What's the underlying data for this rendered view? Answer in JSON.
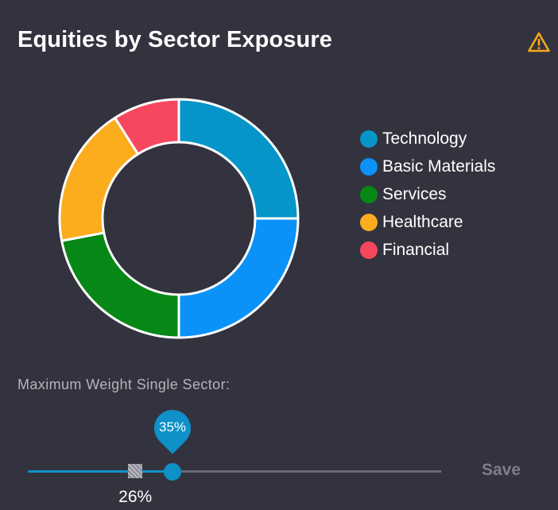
{
  "header": {
    "title": "Equities by Sector Exposure",
    "warning_icon": "warning-triangle-icon",
    "warning_color": "#f6a91b"
  },
  "chart_data": {
    "type": "pie",
    "donut": true,
    "title": "",
    "categories": [
      "Technology",
      "Basic Materials",
      "Services",
      "Healthcare",
      "Financial"
    ],
    "values": [
      25,
      25,
      22,
      19,
      9
    ],
    "colors": [
      "#0595c9",
      "#0a92f8",
      "#078716",
      "#fbad1e",
      "#f6475f"
    ],
    "legend_position": "right"
  },
  "constraint": {
    "label": "Maximum Weight Single Sector:",
    "min": 0,
    "max": 100,
    "value": 35,
    "value_label": "35%",
    "current": 26,
    "current_label": "26%",
    "track_color": "#6b6b77",
    "accent_color": "#0e91c7"
  },
  "actions": {
    "save_label": "Save"
  }
}
